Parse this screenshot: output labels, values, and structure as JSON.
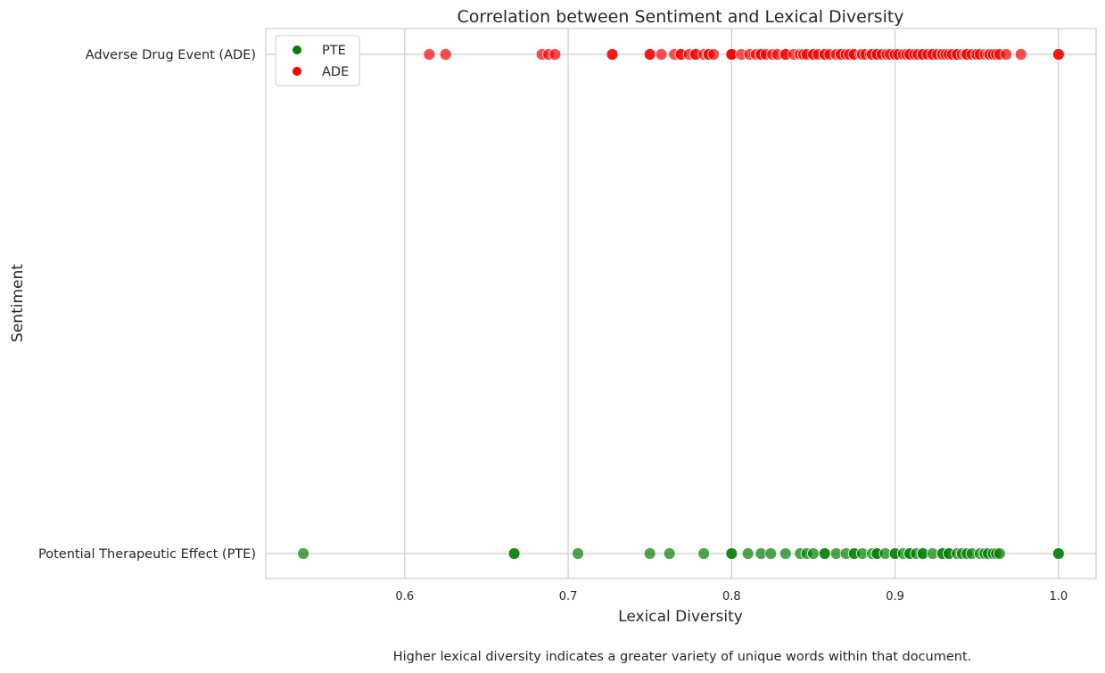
{
  "caption": "Higher lexical diversity indicates a greater variety of unique words within that document.",
  "chart_data": {
    "type": "scatter",
    "title": "Correlation between Sentiment and Lexical Diversity",
    "xlabel": "Lexical Diversity",
    "ylabel": "Sentiment",
    "xlim": [
      0.515,
      1.023
    ],
    "xticks": [
      0.6,
      0.7,
      0.8,
      0.9,
      1.0
    ],
    "xtick_labels": [
      "0.6",
      "0.7",
      "0.8",
      "0.9",
      "1.0"
    ],
    "categories": [
      "Potential Therapeutic Effect (PTE)",
      "Adverse Drug Event (ADE)"
    ],
    "grid": true,
    "legend_position": "top-left",
    "series": [
      {
        "name": "PTE",
        "category": "Potential Therapeutic Effect (PTE)",
        "color": "#008000",
        "x": [
          0.538,
          0.667,
          0.667,
          0.706,
          0.75,
          0.762,
          0.783,
          0.8,
          0.8,
          0.81,
          0.818,
          0.824,
          0.833,
          0.842,
          0.846,
          0.85,
          0.857,
          0.857,
          0.864,
          0.87,
          0.875,
          0.875,
          0.88,
          0.886,
          0.889,
          0.889,
          0.894,
          0.9,
          0.9,
          0.905,
          0.909,
          0.909,
          0.913,
          0.917,
          0.917,
          0.923,
          0.929,
          0.929,
          0.933,
          0.933,
          0.938,
          0.941,
          0.944,
          0.947,
          0.952,
          0.955,
          0.957,
          0.96,
          0.962,
          0.964,
          1.0,
          1.0
        ]
      },
      {
        "name": "ADE",
        "category": "Adverse Drug Event (ADE)",
        "color": "#ff0000",
        "x": [
          0.615,
          0.625,
          0.684,
          0.688,
          0.692,
          0.727,
          0.727,
          0.75,
          0.75,
          0.757,
          0.765,
          0.769,
          0.769,
          0.774,
          0.778,
          0.778,
          0.783,
          0.786,
          0.786,
          0.789,
          0.8,
          0.8,
          0.8,
          0.806,
          0.811,
          0.815,
          0.818,
          0.818,
          0.821,
          0.825,
          0.828,
          0.833,
          0.833,
          0.838,
          0.842,
          0.844,
          0.846,
          0.85,
          0.85,
          0.853,
          0.857,
          0.857,
          0.86,
          0.864,
          0.867,
          0.867,
          0.87,
          0.872,
          0.875,
          0.875,
          0.879,
          0.88,
          0.882,
          0.885,
          0.886,
          0.889,
          0.889,
          0.892,
          0.895,
          0.897,
          0.9,
          0.9,
          0.902,
          0.905,
          0.907,
          0.909,
          0.909,
          0.912,
          0.914,
          0.917,
          0.917,
          0.92,
          0.923,
          0.923,
          0.926,
          0.929,
          0.929,
          0.931,
          0.933,
          0.935,
          0.938,
          0.938,
          0.941,
          0.943,
          0.944,
          0.947,
          0.95,
          0.95,
          0.952,
          0.955,
          0.957,
          0.958,
          0.96,
          0.962,
          0.964,
          0.968,
          0.977,
          1.0,
          1.0
        ]
      }
    ]
  }
}
